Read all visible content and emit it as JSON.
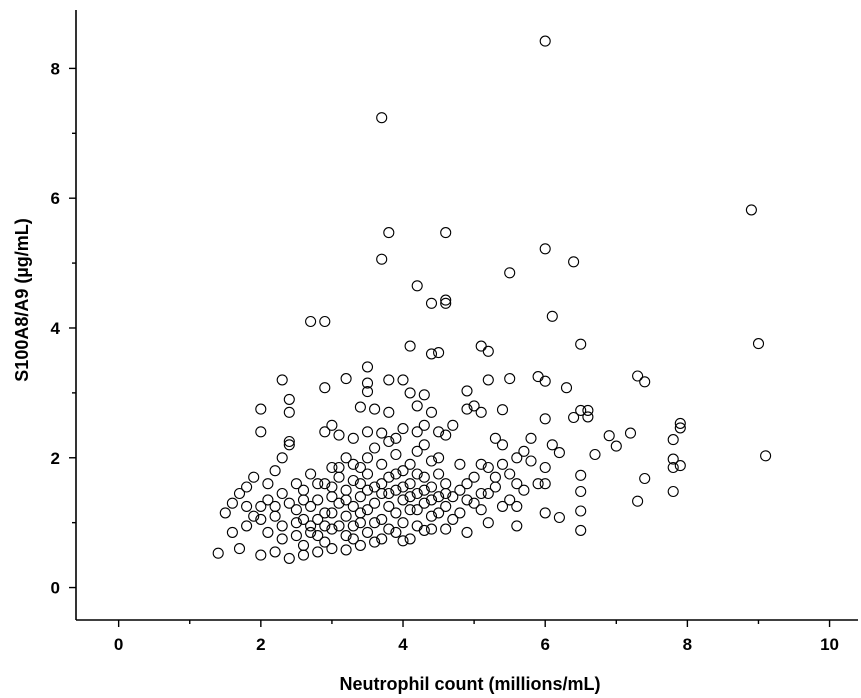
{
  "chart_data": {
    "type": "scatter",
    "title": "",
    "xlabel": "Neutrophil count (millions/mL)",
    "ylabel": "S100A8/A9 (µg/mL)",
    "xlim": [
      -0.6,
      10.4
    ],
    "ylim": [
      -0.5,
      8.9
    ],
    "xticks": [
      0,
      2,
      4,
      6,
      8,
      10
    ],
    "xtick_labels": [
      "0",
      "2",
      "4",
      "6",
      "8",
      "10"
    ],
    "xminor": [
      1,
      3,
      5,
      7,
      9
    ],
    "yticks": [
      0,
      2,
      4,
      6,
      8
    ],
    "ytick_labels": [
      "0",
      "2",
      "4",
      "6",
      "8"
    ],
    "yminor": [
      1,
      3,
      5,
      7
    ],
    "grid": false,
    "marker": "open-circle",
    "color": "#000000",
    "points": [
      [
        6.0,
        8.42
      ],
      [
        3.7,
        7.24
      ],
      [
        8.9,
        5.82
      ],
      [
        3.8,
        5.47
      ],
      [
        4.6,
        5.47
      ],
      [
        3.7,
        5.06
      ],
      [
        6.0,
        5.22
      ],
      [
        6.4,
        5.02
      ],
      [
        5.5,
        4.85
      ],
      [
        4.2,
        4.65
      ],
      [
        4.6,
        4.43
      ],
      [
        4.6,
        4.38
      ],
      [
        4.4,
        4.38
      ],
      [
        6.1,
        4.18
      ],
      [
        2.7,
        4.1
      ],
      [
        2.9,
        4.1
      ],
      [
        9.0,
        3.76
      ],
      [
        6.5,
        3.75
      ],
      [
        4.1,
        3.72
      ],
      [
        5.1,
        3.72
      ],
      [
        5.2,
        3.64
      ],
      [
        4.4,
        3.6
      ],
      [
        4.5,
        3.62
      ],
      [
        3.5,
        3.4
      ],
      [
        7.3,
        3.26
      ],
      [
        7.4,
        3.17
      ],
      [
        5.9,
        3.25
      ],
      [
        6.0,
        3.18
      ],
      [
        6.3,
        3.08
      ],
      [
        2.3,
        3.2
      ],
      [
        2.9,
        3.08
      ],
      [
        3.5,
        3.15
      ],
      [
        3.5,
        3.02
      ],
      [
        3.8,
        3.2
      ],
      [
        4.0,
        3.2
      ],
      [
        4.1,
        3.0
      ],
      [
        4.3,
        2.97
      ],
      [
        4.9,
        3.03
      ],
      [
        5.2,
        3.2
      ],
      [
        5.5,
        3.22
      ],
      [
        2.4,
        2.9
      ],
      [
        2.4,
        2.7
      ],
      [
        2.0,
        2.75
      ],
      [
        3.2,
        3.22
      ],
      [
        3.4,
        2.78
      ],
      [
        3.6,
        2.75
      ],
      [
        3.8,
        2.7
      ],
      [
        4.2,
        2.8
      ],
      [
        4.4,
        2.7
      ],
      [
        4.9,
        2.75
      ],
      [
        5.0,
        2.8
      ],
      [
        5.1,
        2.7
      ],
      [
        5.4,
        2.74
      ],
      [
        5.8,
        2.3
      ],
      [
        6.0,
        2.6
      ],
      [
        6.5,
        2.73
      ],
      [
        6.6,
        2.73
      ],
      [
        6.4,
        2.62
      ],
      [
        6.6,
        2.63
      ],
      [
        7.9,
        2.53
      ],
      [
        7.9,
        2.46
      ],
      [
        7.8,
        2.28
      ],
      [
        6.9,
        2.34
      ],
      [
        7.2,
        2.38
      ],
      [
        2.0,
        2.4
      ],
      [
        2.4,
        2.2
      ],
      [
        2.4,
        2.25
      ],
      [
        2.9,
        2.4
      ],
      [
        3.0,
        2.5
      ],
      [
        3.1,
        2.35
      ],
      [
        3.3,
        2.3
      ],
      [
        3.5,
        2.4
      ],
      [
        3.7,
        2.38
      ],
      [
        3.9,
        2.3
      ],
      [
        4.2,
        2.4
      ],
      [
        4.3,
        2.5
      ],
      [
        4.5,
        2.4
      ],
      [
        4.7,
        2.5
      ],
      [
        5.3,
        2.3
      ],
      [
        5.4,
        2.2
      ],
      [
        5.6,
        2.0
      ],
      [
        6.1,
        2.2
      ],
      [
        6.2,
        2.08
      ],
      [
        6.7,
        2.05
      ],
      [
        7.0,
        2.18
      ],
      [
        7.8,
        1.98
      ],
      [
        7.8,
        1.85
      ],
      [
        7.9,
        1.88
      ],
      [
        9.1,
        2.03
      ],
      [
        7.4,
        1.68
      ],
      [
        7.8,
        1.48
      ],
      [
        7.3,
        1.33
      ],
      [
        6.5,
        1.73
      ],
      [
        6.5,
        1.48
      ],
      [
        6.2,
        1.08
      ],
      [
        6.5,
        1.18
      ],
      [
        6.5,
        0.88
      ],
      [
        5.6,
        0.95
      ],
      [
        5.2,
        1.0
      ],
      [
        5.1,
        1.45
      ],
      [
        5.4,
        1.25
      ],
      [
        5.7,
        1.5
      ],
      [
        6.0,
        1.85
      ],
      [
        5.9,
        1.6
      ],
      [
        6.0,
        1.15
      ],
      [
        2.3,
        2.0
      ],
      [
        2.2,
        1.8
      ],
      [
        2.1,
        1.6
      ],
      [
        1.9,
        1.7
      ],
      [
        1.8,
        1.55
      ],
      [
        1.7,
        1.45
      ],
      [
        1.6,
        1.3
      ],
      [
        1.5,
        1.15
      ],
      [
        1.6,
        0.85
      ],
      [
        1.4,
        0.53
      ],
      [
        1.7,
        0.6
      ],
      [
        2.0,
        0.5
      ],
      [
        2.2,
        0.55
      ],
      [
        2.4,
        0.45
      ],
      [
        2.6,
        0.5
      ],
      [
        2.8,
        0.55
      ],
      [
        3.0,
        0.6
      ],
      [
        3.2,
        0.58
      ],
      [
        3.4,
        0.65
      ],
      [
        3.6,
        0.7
      ],
      [
        4.0,
        0.72
      ],
      [
        4.3,
        0.88
      ],
      [
        4.6,
        0.9
      ],
      [
        4.9,
        0.85
      ],
      [
        2.1,
        1.35
      ],
      [
        2.2,
        1.1
      ],
      [
        2.3,
        0.95
      ],
      [
        2.5,
        1.2
      ],
      [
        2.5,
        0.8
      ],
      [
        2.6,
        1.5
      ],
      [
        2.6,
        1.05
      ],
      [
        2.7,
        1.75
      ],
      [
        2.7,
        0.95
      ],
      [
        2.8,
        1.35
      ],
      [
        2.8,
        0.8
      ],
      [
        2.9,
        1.6
      ],
      [
        2.9,
        1.15
      ],
      [
        3.0,
        1.85
      ],
      [
        3.0,
        1.4
      ],
      [
        3.0,
        0.9
      ],
      [
        3.1,
        1.3
      ],
      [
        3.1,
        1.7
      ],
      [
        3.2,
        2.0
      ],
      [
        3.2,
        1.5
      ],
      [
        3.2,
        1.1
      ],
      [
        3.2,
        0.8
      ],
      [
        3.3,
        1.9
      ],
      [
        3.3,
        1.25
      ],
      [
        3.3,
        0.95
      ],
      [
        3.4,
        1.6
      ],
      [
        3.4,
        1.4
      ],
      [
        3.4,
        1.0
      ],
      [
        3.5,
        2.0
      ],
      [
        3.5,
        1.75
      ],
      [
        3.5,
        1.2
      ],
      [
        3.5,
        0.85
      ],
      [
        3.6,
        1.55
      ],
      [
        3.6,
        1.3
      ],
      [
        3.7,
        1.9
      ],
      [
        3.7,
        1.45
      ],
      [
        3.7,
        1.05
      ],
      [
        3.8,
        1.7
      ],
      [
        3.8,
        1.25
      ],
      [
        3.8,
        0.9
      ],
      [
        3.9,
        2.05
      ],
      [
        3.9,
        1.5
      ],
      [
        3.9,
        1.15
      ],
      [
        4.0,
        1.8
      ],
      [
        4.0,
        1.35
      ],
      [
        4.0,
        1.0
      ],
      [
        4.1,
        1.6
      ],
      [
        4.1,
        1.9
      ],
      [
        4.1,
        1.2
      ],
      [
        4.2,
        1.45
      ],
      [
        4.2,
        2.1
      ],
      [
        4.2,
        0.95
      ],
      [
        4.3,
        1.7
      ],
      [
        4.3,
        1.3
      ],
      [
        4.4,
        1.55
      ],
      [
        4.4,
        1.1
      ],
      [
        4.4,
        1.95
      ],
      [
        4.5,
        1.4
      ],
      [
        4.5,
        1.75
      ],
      [
        4.6,
        1.25
      ],
      [
        4.6,
        1.6
      ],
      [
        4.7,
        1.05
      ],
      [
        4.8,
        1.5
      ],
      [
        4.8,
        1.9
      ],
      [
        4.9,
        1.35
      ],
      [
        5.0,
        1.7
      ],
      [
        5.1,
        1.2
      ],
      [
        5.2,
        1.85
      ],
      [
        5.3,
        1.55
      ],
      [
        5.5,
        1.75
      ],
      [
        5.6,
        1.6
      ],
      [
        5.8,
        1.95
      ],
      [
        6.0,
        1.6
      ],
      [
        2.0,
        1.25
      ],
      [
        2.0,
        1.05
      ],
      [
        2.1,
        0.85
      ],
      [
        2.3,
        1.45
      ],
      [
        2.4,
        1.3
      ],
      [
        2.5,
        1.6
      ],
      [
        2.6,
        0.65
      ],
      [
        2.7,
        1.25
      ],
      [
        2.8,
        1.05
      ],
      [
        2.9,
        0.7
      ],
      [
        3.0,
        1.15
      ],
      [
        3.1,
        0.95
      ],
      [
        3.3,
        0.75
      ],
      [
        3.4,
        1.85
      ],
      [
        3.6,
        2.15
      ],
      [
        3.7,
        0.75
      ],
      [
        3.8,
        2.25
      ],
      [
        3.9,
        0.85
      ],
      [
        4.0,
        2.45
      ],
      [
        4.1,
        0.75
      ],
      [
        4.2,
        1.75
      ],
      [
        4.3,
        2.2
      ],
      [
        4.4,
        0.9
      ],
      [
        4.5,
        2.0
      ],
      [
        4.6,
        2.35
      ],
      [
        4.7,
        1.4
      ],
      [
        4.8,
        1.15
      ],
      [
        4.9,
        1.6
      ],
      [
        5.0,
        1.3
      ],
      [
        5.1,
        1.9
      ],
      [
        5.2,
        1.45
      ],
      [
        5.3,
        1.7
      ],
      [
        5.4,
        1.9
      ],
      [
        5.5,
        1.35
      ],
      [
        5.6,
        1.25
      ],
      [
        5.7,
        2.1
      ],
      [
        1.8,
        1.25
      ],
      [
        1.8,
        0.95
      ],
      [
        1.9,
        1.1
      ],
      [
        2.2,
        1.25
      ],
      [
        2.3,
        0.75
      ],
      [
        2.5,
        1.0
      ],
      [
        2.6,
        1.35
      ],
      [
        2.7,
        0.85
      ],
      [
        2.8,
        1.6
      ],
      [
        2.9,
        0.95
      ],
      [
        3.0,
        1.55
      ],
      [
        3.1,
        1.85
      ],
      [
        3.2,
        1.35
      ],
      [
        3.3,
        1.65
      ],
      [
        3.4,
        1.15
      ],
      [
        3.5,
        1.5
      ],
      [
        3.6,
        1.0
      ],
      [
        3.7,
        1.6
      ],
      [
        3.8,
        1.45
      ],
      [
        3.9,
        1.75
      ],
      [
        4.0,
        1.55
      ],
      [
        4.1,
        1.4
      ],
      [
        4.2,
        1.2
      ],
      [
        4.3,
        1.5
      ],
      [
        4.4,
        1.35
      ],
      [
        4.5,
        1.15
      ],
      [
        4.6,
        1.45
      ]
    ]
  }
}
